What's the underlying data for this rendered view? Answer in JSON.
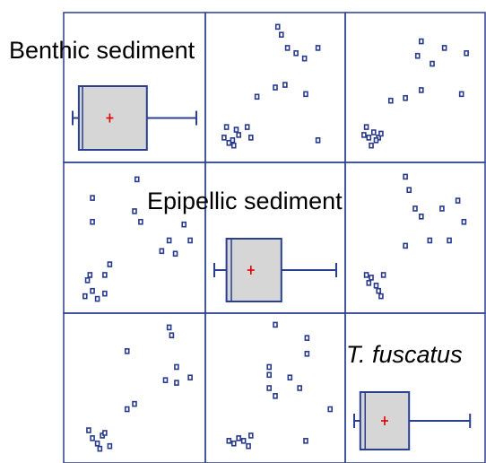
{
  "chart_data": {
    "type": "scatter-matrix",
    "variables": [
      {
        "name": "Benthic sediment",
        "style": "normal"
      },
      {
        "name": "Epipellic sediment",
        "style": "normal"
      },
      {
        "name": "T. fuscatus",
        "style": "italic"
      }
    ],
    "diagonal": {
      "type": "box",
      "boxes": [
        {
          "min": 0.0,
          "q1": 0.05,
          "median": 0.08,
          "mean": 0.3,
          "q3": 0.6,
          "max": 1.0
        },
        {
          "min": 0.0,
          "q1": 0.1,
          "median": 0.14,
          "mean": 0.3,
          "q3": 0.55,
          "max": 1.0
        },
        {
          "min": 0.0,
          "q1": 0.05,
          "median": 0.09,
          "mean": 0.25,
          "q3": 0.45,
          "max": 0.95
        }
      ]
    },
    "offdiagonal": {
      "type": "scatter",
      "panels": [
        {
          "row": 0,
          "col": 1,
          "points": [
            [
              0.52,
              0.96
            ],
            [
              0.55,
              0.9
            ],
            [
              0.6,
              0.8
            ],
            [
              0.67,
              0.76
            ],
            [
              0.85,
              0.8
            ],
            [
              0.74,
              0.72
            ],
            [
              0.5,
              0.5
            ],
            [
              0.58,
              0.52
            ],
            [
              0.75,
              0.45
            ],
            [
              0.35,
              0.43
            ],
            [
              0.85,
              0.1
            ],
            [
              0.1,
              0.2
            ],
            [
              0.18,
              0.18
            ],
            [
              0.2,
              0.14
            ],
            [
              0.27,
              0.2
            ],
            [
              0.15,
              0.1
            ],
            [
              0.3,
              0.12
            ],
            [
              0.12,
              0.08
            ],
            [
              0.16,
              0.06
            ],
            [
              0.08,
              0.12
            ]
          ]
        },
        {
          "row": 0,
          "col": 2,
          "points": [
            [
              0.55,
              0.85
            ],
            [
              0.74,
              0.8
            ],
            [
              0.92,
              0.76
            ],
            [
              0.52,
              0.74
            ],
            [
              0.64,
              0.68
            ],
            [
              0.55,
              0.48
            ],
            [
              0.88,
              0.45
            ],
            [
              0.3,
              0.4
            ],
            [
              0.42,
              0.42
            ],
            [
              0.1,
              0.2
            ],
            [
              0.16,
              0.16
            ],
            [
              0.12,
              0.12
            ],
            [
              0.2,
              0.12
            ],
            [
              0.14,
              0.06
            ],
            [
              0.18,
              0.1
            ],
            [
              0.08,
              0.14
            ],
            [
              0.22,
              0.15
            ]
          ]
        },
        {
          "row": 1,
          "col": 0,
          "points": [
            [
              0.52,
              0.94
            ],
            [
              0.5,
              0.7
            ],
            [
              0.16,
              0.8
            ],
            [
              0.55,
              0.62
            ],
            [
              0.16,
              0.62
            ],
            [
              0.9,
              0.6
            ],
            [
              0.95,
              0.48
            ],
            [
              0.78,
              0.48
            ],
            [
              0.83,
              0.38
            ],
            [
              0.72,
              0.4
            ],
            [
              0.3,
              0.3
            ],
            [
              0.26,
              0.22
            ],
            [
              0.14,
              0.22
            ],
            [
              0.12,
              0.18
            ],
            [
              0.16,
              0.1
            ],
            [
              0.26,
              0.08
            ],
            [
              0.1,
              0.06
            ],
            [
              0.2,
              0.04
            ]
          ]
        },
        {
          "row": 1,
          "col": 2,
          "points": [
            [
              0.42,
              0.96
            ],
            [
              0.45,
              0.86
            ],
            [
              0.5,
              0.72
            ],
            [
              0.72,
              0.72
            ],
            [
              0.85,
              0.78
            ],
            [
              0.9,
              0.62
            ],
            [
              0.78,
              0.48
            ],
            [
              0.62,
              0.48
            ],
            [
              0.42,
              0.44
            ],
            [
              0.55,
              0.66
            ],
            [
              0.14,
              0.2
            ],
            [
              0.18,
              0.14
            ],
            [
              0.24,
              0.22
            ],
            [
              0.2,
              0.1
            ],
            [
              0.12,
              0.16
            ],
            [
              0.22,
              0.06
            ],
            [
              0.1,
              0.22
            ]
          ]
        },
        {
          "row": 2,
          "col": 0,
          "points": [
            [
              0.78,
              0.96
            ],
            [
              0.8,
              0.9
            ],
            [
              0.44,
              0.78
            ],
            [
              0.84,
              0.66
            ],
            [
              0.75,
              0.56
            ],
            [
              0.84,
              0.54
            ],
            [
              0.95,
              0.58
            ],
            [
              0.5,
              0.38
            ],
            [
              0.44,
              0.34
            ],
            [
              0.13,
              0.18
            ],
            [
              0.16,
              0.12
            ],
            [
              0.2,
              0.08
            ],
            [
              0.24,
              0.14
            ],
            [
              0.3,
              0.06
            ],
            [
              0.22,
              0.04
            ],
            [
              0.26,
              0.16
            ]
          ]
        },
        {
          "row": 2,
          "col": 1,
          "points": [
            [
              0.5,
              0.98
            ],
            [
              0.76,
              0.88
            ],
            [
              0.76,
              0.76
            ],
            [
              0.45,
              0.66
            ],
            [
              0.62,
              0.58
            ],
            [
              0.45,
              0.6
            ],
            [
              0.45,
              0.5
            ],
            [
              0.7,
              0.5
            ],
            [
              0.5,
              0.44
            ],
            [
              0.95,
              0.34
            ],
            [
              0.75,
              0.1
            ],
            [
              0.12,
              0.1
            ],
            [
              0.16,
              0.08
            ],
            [
              0.2,
              0.12
            ],
            [
              0.24,
              0.1
            ],
            [
              0.3,
              0.14
            ],
            [
              0.28,
              0.06
            ]
          ]
        }
      ]
    }
  },
  "colors": {
    "frame": "#2a3f8f",
    "marker": "#283b8c",
    "box_fill": "#d6d6d6",
    "box_stroke": "#2b3f8f",
    "mean_marker": "#e00000"
  }
}
